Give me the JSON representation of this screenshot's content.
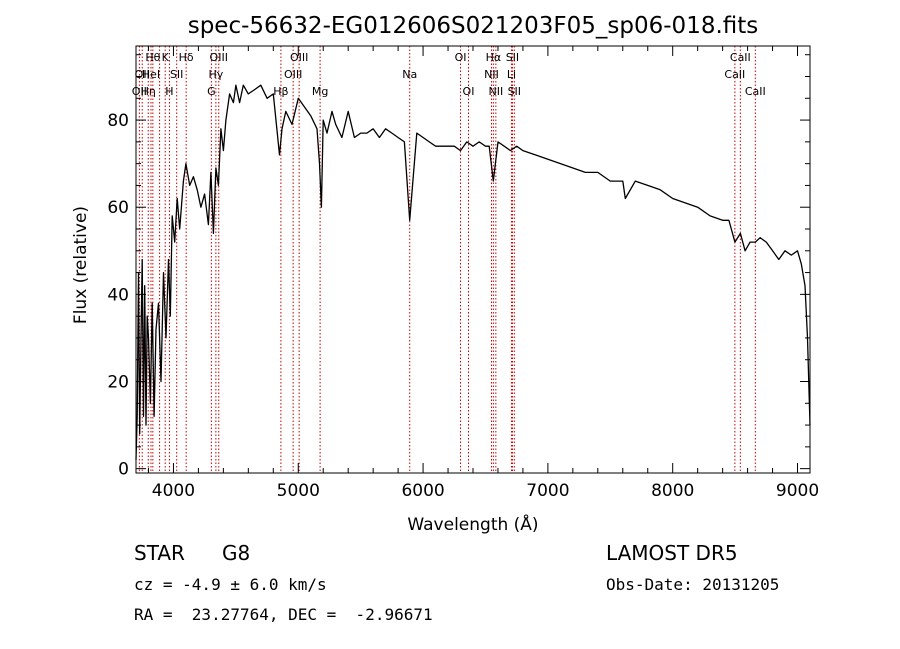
{
  "chart_data": {
    "type": "line",
    "title": "spec-56632-EG012606S021203F05_sp06-018.fits",
    "xlabel": "Wavelength (Å)",
    "ylabel": "Flux (relative)",
    "xlim": [
      3700,
      9100
    ],
    "ylim": [
      -1,
      97
    ],
    "x_ticks": [
      4000,
      5000,
      6000,
      7000,
      8000,
      9000
    ],
    "y_ticks": [
      0,
      20,
      40,
      60,
      80
    ],
    "grid": false,
    "line_color": "#000000",
    "marker_color": "#cc0000",
    "series": [
      {
        "x": [
          3700,
          3710,
          3720,
          3730,
          3740,
          3750,
          3760,
          3770,
          3780,
          3790,
          3800,
          3815,
          3830,
          3845,
          3860,
          3880,
          3900,
          3920,
          3940,
          3960,
          3975,
          3990,
          4010,
          4030,
          4050,
          4080,
          4100,
          4130,
          4160,
          4190,
          4220,
          4250,
          4280,
          4300,
          4320,
          4340,
          4360,
          4380,
          4400,
          4420,
          4450,
          4480,
          4500,
          4530,
          4560,
          4600,
          4650,
          4700,
          4750,
          4800,
          4850,
          4870,
          4900,
          4950,
          5000,
          5050,
          5100,
          5150,
          5170,
          5185,
          5200,
          5230,
          5270,
          5300,
          5350,
          5400,
          5450,
          5500,
          5550,
          5600,
          5650,
          5700,
          5750,
          5800,
          5850,
          5893,
          5950,
          6000,
          6050,
          6100,
          6150,
          6200,
          6250,
          6300,
          6350,
          6400,
          6450,
          6500,
          6530,
          6563,
          6600,
          6650,
          6700,
          6750,
          6800,
          6900,
          7000,
          7100,
          7200,
          7300,
          7400,
          7500,
          7600,
          7620,
          7700,
          7800,
          7900,
          8000,
          8100,
          8200,
          8300,
          8400,
          8450,
          8498,
          8542,
          8580,
          8620,
          8662,
          8700,
          8750,
          8800,
          8850,
          8900,
          8950,
          9000,
          9030,
          9060,
          9080,
          9100
        ],
        "y": [
          2,
          12,
          45,
          8,
          30,
          48,
          12,
          42,
          10,
          35,
          30,
          15,
          38,
          12,
          32,
          38,
          20,
          45,
          30,
          48,
          35,
          58,
          52,
          62,
          55,
          66,
          70,
          65,
          67,
          64,
          60,
          63,
          56,
          68,
          54,
          69,
          65,
          78,
          73,
          80,
          86,
          84,
          88,
          84,
          88,
          86,
          87,
          88,
          85,
          86,
          72,
          78,
          82,
          79,
          85,
          83,
          81,
          78,
          70,
          60,
          80,
          77,
          82,
          79,
          76,
          82,
          76,
          77,
          77,
          78,
          76,
          78,
          77,
          76,
          75,
          57,
          77,
          76,
          75,
          74,
          74,
          74,
          74,
          73,
          75,
          74,
          75,
          74,
          74,
          66,
          75,
          74,
          73,
          74,
          73,
          72,
          71,
          70,
          69,
          68,
          68,
          66,
          66,
          62,
          66,
          65,
          64,
          62,
          61,
          60,
          58,
          57,
          57,
          52,
          54,
          50,
          52,
          52,
          53,
          52,
          50,
          48,
          50,
          49,
          50,
          47,
          42,
          30,
          10
        ]
      }
    ],
    "line_markers": [
      {
        "wavelength": 3727,
        "label": "OII",
        "row": 2
      },
      {
        "wavelength": 3750,
        "label": "OII",
        "row": 1
      },
      {
        "wavelength": 3798,
        "label": "Hη",
        "row": 2
      },
      {
        "wavelength": 3820,
        "label": "HeI",
        "row": 1
      },
      {
        "wavelength": 3835,
        "label": "Hθ",
        "row": 0
      },
      {
        "wavelength": 3889,
        "label": "",
        "row": 0
      },
      {
        "wavelength": 3934,
        "label": "K",
        "row": 0
      },
      {
        "wavelength": 3968,
        "label": "H",
        "row": 2
      },
      {
        "wavelength": 4026,
        "label": "SII",
        "row": 1
      },
      {
        "wavelength": 4102,
        "label": "Hδ",
        "row": 0
      },
      {
        "wavelength": 4304,
        "label": "G",
        "row": 2
      },
      {
        "wavelength": 4340,
        "label": "Hγ",
        "row": 1
      },
      {
        "wavelength": 4363,
        "label": "OIII",
        "row": 0
      },
      {
        "wavelength": 4861,
        "label": "Hβ",
        "row": 2
      },
      {
        "wavelength": 4959,
        "label": "OIII",
        "row": 1
      },
      {
        "wavelength": 5007,
        "label": "OIII",
        "row": 0
      },
      {
        "wavelength": 5175,
        "label": "Mg",
        "row": 2
      },
      {
        "wavelength": 5893,
        "label": "Na",
        "row": 1
      },
      {
        "wavelength": 6300,
        "label": "OI",
        "row": 0
      },
      {
        "wavelength": 6364,
        "label": "OI",
        "row": 2
      },
      {
        "wavelength": 6548,
        "label": "NII",
        "row": 1
      },
      {
        "wavelength": 6563,
        "label": "Hα",
        "row": 0
      },
      {
        "wavelength": 6583,
        "label": "NII",
        "row": 2
      },
      {
        "wavelength": 6708,
        "label": "Li",
        "row": 1
      },
      {
        "wavelength": 6716,
        "label": "SII",
        "row": 0
      },
      {
        "wavelength": 6731,
        "label": "SII",
        "row": 2
      },
      {
        "wavelength": 8498,
        "label": "CaII",
        "row": 1
      },
      {
        "wavelength": 8542,
        "label": "CaII",
        "row": 0
      },
      {
        "wavelength": 8662,
        "label": "CaII",
        "row": 2
      }
    ]
  },
  "info": {
    "object_class": "STAR",
    "subclass": "G8",
    "survey": "LAMOST DR5",
    "redshift_text": "cz = -4.9 ± 6.0 km/s",
    "obs_date": "Obs-Date: 20131205",
    "coords_text": "RA =  23.27764, DEC =  -2.96671"
  }
}
